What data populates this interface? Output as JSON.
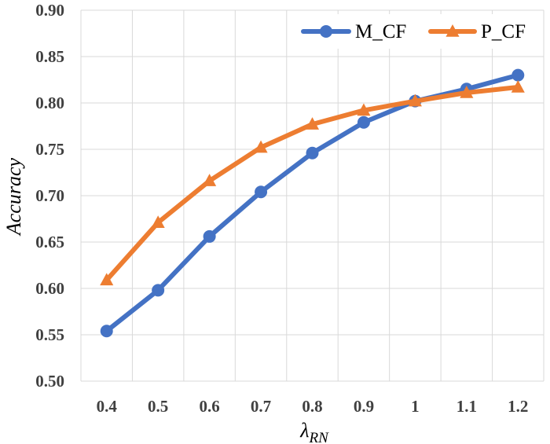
{
  "chart_data": {
    "type": "line",
    "x": [
      0.4,
      0.5,
      0.6,
      0.7,
      0.8,
      0.9,
      1.0,
      1.1,
      1.2
    ],
    "x_tick_labels": [
      "0.4",
      "0.5",
      "0.6",
      "0.7",
      "0.8",
      "0.9",
      "1",
      "1.1",
      "1.2"
    ],
    "y_ticks": [
      0.5,
      0.55,
      0.6,
      0.65,
      0.7,
      0.75,
      0.8,
      0.85,
      0.9
    ],
    "y_tick_labels": [
      "0.50",
      "0.55",
      "0.60",
      "0.65",
      "0.70",
      "0.75",
      "0.80",
      "0.85",
      "0.90"
    ],
    "ylim": [
      0.5,
      0.9
    ],
    "xlabel": "λ",
    "xlabel_subscript": "RN",
    "ylabel": "Accuracy",
    "grid": "vertical-and-horizontal",
    "legend_position": "top-right",
    "series": [
      {
        "name": "M_CF",
        "color": "#4472c4",
        "marker": "circle",
        "values": [
          0.554,
          0.598,
          0.656,
          0.704,
          0.746,
          0.779,
          0.802,
          0.815,
          0.83
        ]
      },
      {
        "name": "P_CF",
        "color": "#ed7d31",
        "marker": "triangle",
        "values": [
          0.609,
          0.671,
          0.716,
          0.752,
          0.777,
          0.792,
          0.802,
          0.811,
          0.817
        ]
      }
    ]
  }
}
